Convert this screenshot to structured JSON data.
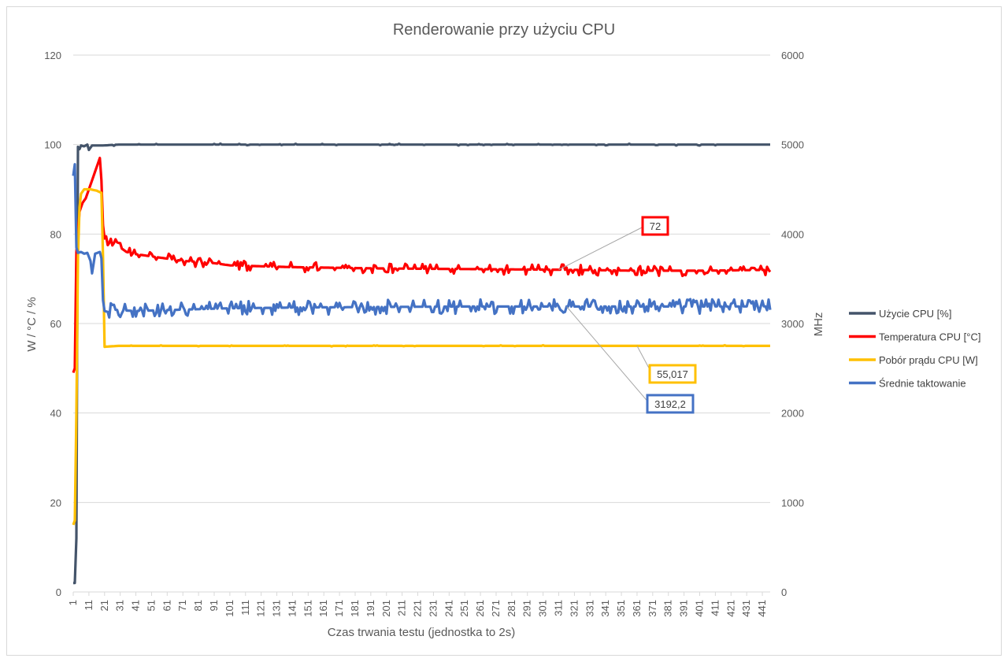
{
  "chart_data": {
    "type": "line",
    "title": "Renderowanie przy użyciu CPU",
    "xlabel": "Czas trwania testu (jednostka to 2s)",
    "ylabel": "W / °C / %",
    "y2label": "MHz",
    "xlim": [
      1,
      446
    ],
    "ylim": [
      0,
      120
    ],
    "y2lim": [
      0,
      6000
    ],
    "y_ticks": [
      "0",
      "20",
      "40",
      "60",
      "80",
      "100",
      "120"
    ],
    "y2_ticks": [
      "0",
      "1000",
      "2000",
      "3000",
      "4000",
      "5000",
      "6000"
    ],
    "x_ticks": [
      "1",
      "11",
      "21",
      "31",
      "41",
      "51",
      "61",
      "71",
      "81",
      "91",
      "101",
      "111",
      "121",
      "131",
      "141",
      "151",
      "161",
      "171",
      "181",
      "191",
      "201",
      "211",
      "221",
      "231",
      "241",
      "251",
      "261",
      "271",
      "281",
      "291",
      "301",
      "311",
      "321",
      "331",
      "341",
      "351",
      "361",
      "371",
      "381",
      "391",
      "401",
      "411",
      "421",
      "431",
      "441"
    ],
    "grid": "horizontal",
    "legend_position": "right",
    "series": [
      {
        "name": "Użycie CPU [%]",
        "color": "#44546a",
        "axis": "left",
        "points": [
          [
            1,
            2
          ],
          [
            2,
            2
          ],
          [
            3,
            12
          ],
          [
            4,
            99.5
          ],
          [
            5,
            99
          ],
          [
            6,
            99.8
          ],
          [
            8,
            99.6
          ],
          [
            10,
            100
          ],
          [
            11,
            98.8
          ],
          [
            13,
            99.8
          ],
          [
            20,
            99.8
          ],
          [
            30,
            100
          ],
          [
            100,
            100
          ],
          [
            200,
            100
          ],
          [
            300,
            100
          ],
          [
            400,
            100
          ],
          [
            446,
            100
          ]
        ]
      },
      {
        "name": "Temperatura CPU [°C]",
        "color": "#ff0000",
        "axis": "left",
        "points": [
          [
            1,
            49
          ],
          [
            2,
            50
          ],
          [
            3,
            76
          ],
          [
            5,
            85
          ],
          [
            7,
            87
          ],
          [
            9,
            88
          ],
          [
            11,
            90
          ],
          [
            13,
            92
          ],
          [
            15,
            94
          ],
          [
            17,
            96
          ],
          [
            18,
            97
          ],
          [
            19,
            92
          ],
          [
            20,
            82
          ],
          [
            21,
            79
          ],
          [
            23,
            78
          ],
          [
            27,
            78
          ],
          [
            31,
            77
          ],
          [
            35,
            76
          ],
          [
            41,
            75.5
          ],
          [
            51,
            75
          ],
          [
            61,
            74.5
          ],
          [
            71,
            74
          ],
          [
            81,
            73.8
          ],
          [
            91,
            73.5
          ],
          [
            101,
            73
          ],
          [
            121,
            72.8
          ],
          [
            141,
            72.6
          ],
          [
            161,
            72.5
          ],
          [
            181,
            72.4
          ],
          [
            201,
            72.3
          ],
          [
            241,
            72.2
          ],
          [
            281,
            72.1
          ],
          [
            321,
            72
          ],
          [
            361,
            71.8
          ],
          [
            401,
            71.8
          ],
          [
            446,
            72
          ]
        ],
        "callout": "72"
      },
      {
        "name": "Pobór prądu CPU [W]",
        "color": "#ffc000",
        "axis": "left",
        "points": [
          [
            1,
            15
          ],
          [
            2,
            16
          ],
          [
            3,
            40
          ],
          [
            4,
            75
          ],
          [
            5,
            86
          ],
          [
            6,
            89
          ],
          [
            8,
            90
          ],
          [
            12,
            90
          ],
          [
            16,
            89.7
          ],
          [
            19,
            89.2
          ],
          [
            20,
            75
          ],
          [
            21,
            54.8
          ],
          [
            25,
            54.9
          ],
          [
            30,
            55
          ],
          [
            100,
            55
          ],
          [
            200,
            55
          ],
          [
            300,
            55
          ],
          [
            400,
            55
          ],
          [
            446,
            55
          ]
        ],
        "callout": "55,017"
      },
      {
        "name": "Średnie taktowanie",
        "color": "#4472c4",
        "axis": "right",
        "points": [
          [
            1,
            4650
          ],
          [
            2,
            4780
          ],
          [
            3,
            3850
          ],
          [
            4,
            3790
          ],
          [
            6,
            3800
          ],
          [
            8,
            3780
          ],
          [
            10,
            3790
          ],
          [
            12,
            3700
          ],
          [
            13,
            3560
          ],
          [
            15,
            3780
          ],
          [
            18,
            3800
          ],
          [
            19,
            3730
          ],
          [
            20,
            3260
          ],
          [
            21,
            3140
          ],
          [
            23,
            3130
          ],
          [
            25,
            3160
          ],
          [
            30,
            3150
          ],
          [
            40,
            3140
          ],
          [
            60,
            3150
          ],
          [
            80,
            3160
          ],
          [
            100,
            3170
          ],
          [
            150,
            3180
          ],
          [
            200,
            3185
          ],
          [
            250,
            3190
          ],
          [
            300,
            3190
          ],
          [
            350,
            3190
          ],
          [
            400,
            3190
          ],
          [
            446,
            3192
          ]
        ],
        "callout": "3192,2"
      }
    ]
  }
}
